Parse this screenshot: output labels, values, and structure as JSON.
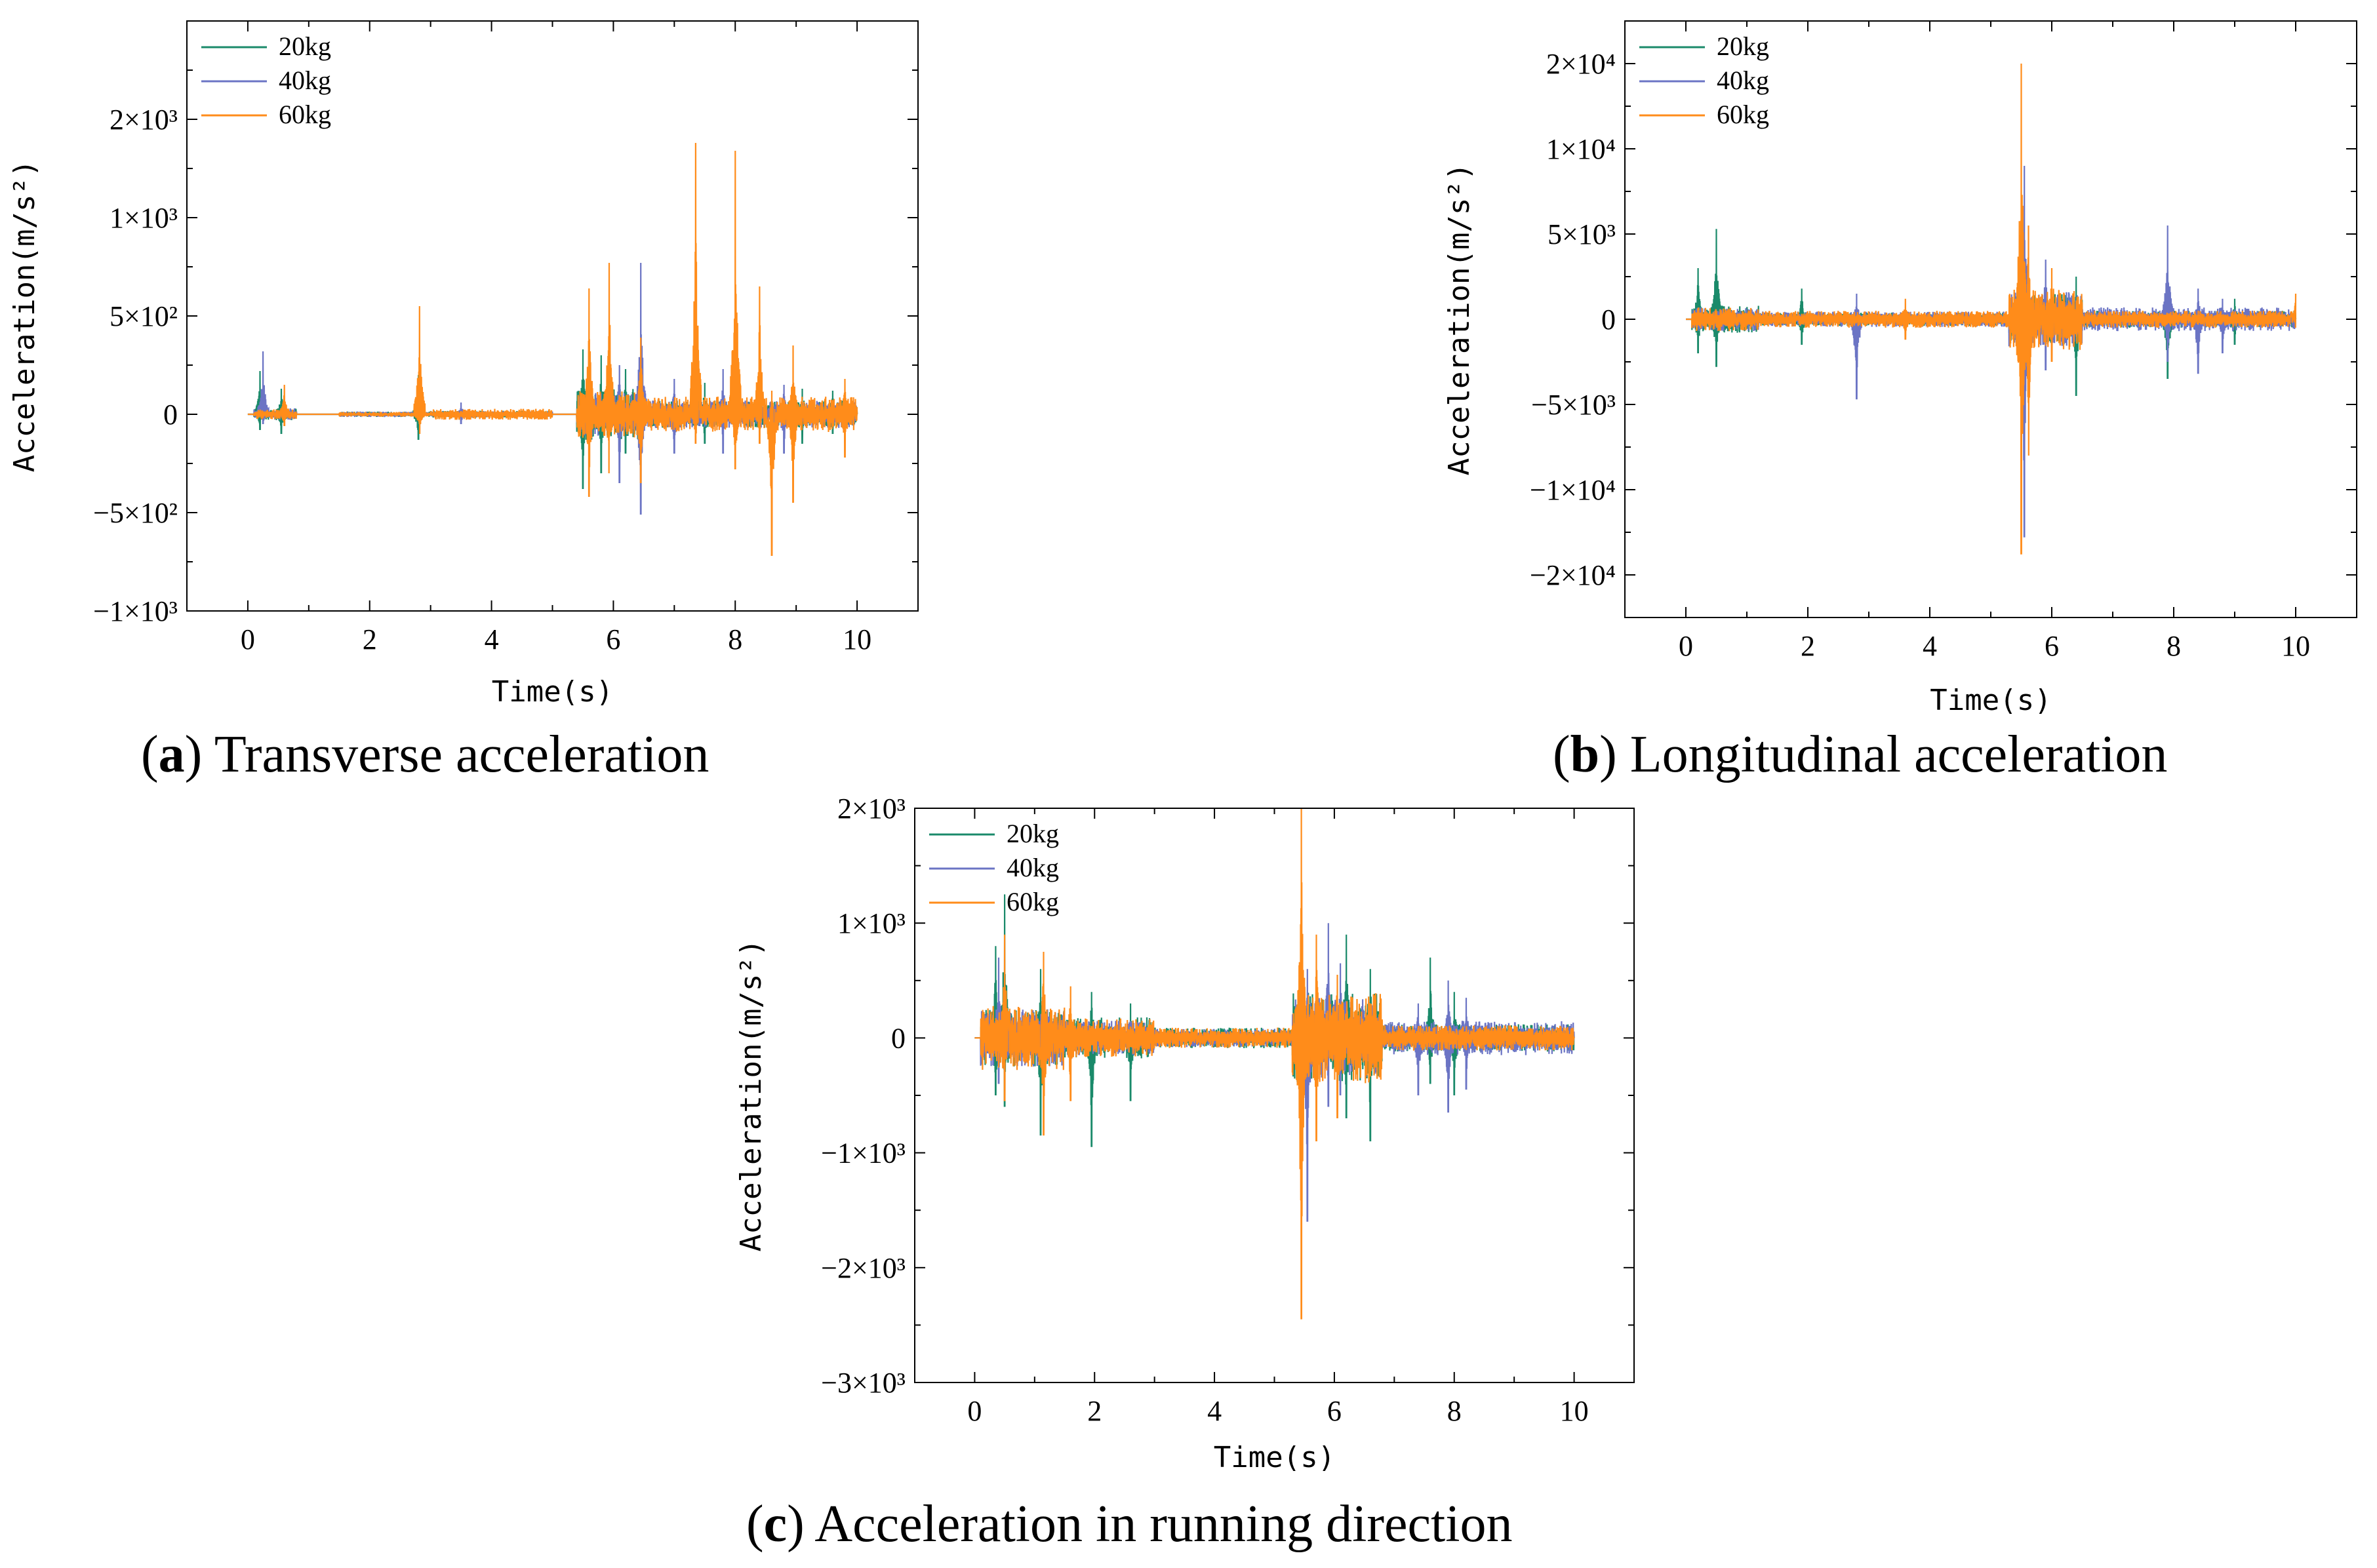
{
  "colors": {
    "20kg": "#1a8a6a",
    "40kg": "#6b74c4",
    "60kg": "#ff8c1a"
  },
  "chart_data": [
    {
      "id": "a",
      "type": "line",
      "caption_letter": "a",
      "caption_text": " Transverse acceleration",
      "xlabel": "Time(s)",
      "ylabel": "Acceleration(m/s²)",
      "xlim": [
        -1,
        11
      ],
      "ylim": [
        -1000,
        2000
      ],
      "xticks": [
        0,
        2,
        4,
        6,
        8,
        10
      ],
      "xtick_labels": [
        "0",
        "2",
        "4",
        "6",
        "8",
        "10"
      ],
      "yticks": [
        -1000,
        -500,
        0,
        500,
        1000,
        1500
      ],
      "ytick_labels": [
        "−1×10³",
        "−5×10²",
        "0",
        "5×10²",
        "1×10³",
        "2×10³"
      ],
      "legend": [
        "20kg",
        "40kg",
        "60kg"
      ],
      "legend_position": "top-left",
      "series": [
        {
          "name": "20kg",
          "events": [
            [
              0.2,
              220,
              -80
            ],
            [
              0.55,
              130,
              -100
            ],
            [
              2.8,
              200,
              -130
            ],
            [
              5.5,
              330,
              -380
            ],
            [
              5.8,
              300,
              -300
            ],
            [
              6.2,
              230,
              -200
            ],
            [
              7.5,
              160,
              -150
            ],
            [
              9.1,
              130,
              -150
            ],
            [
              9.6,
              120,
              -100
            ]
          ],
          "bands": [
            [
              0.1,
              0.8,
              30
            ],
            [
              1.5,
              3.0,
              14
            ],
            [
              3.0,
              5.0,
              18
            ],
            [
              5.4,
              6.5,
              130
            ],
            [
              6.5,
              10,
              70
            ]
          ]
        },
        {
          "name": "40kg",
          "events": [
            [
              0.25,
              320,
              -50
            ],
            [
              3.5,
              60,
              -50
            ],
            [
              6.1,
              250,
              -350
            ],
            [
              6.45,
              770,
              -510
            ],
            [
              7.0,
              180,
              -200
            ],
            [
              7.8,
              230,
              -200
            ],
            [
              8.8,
              150,
              -200
            ]
          ],
          "bands": [
            [
              0.1,
              0.8,
              30
            ],
            [
              1.5,
              3.0,
              14
            ],
            [
              3.0,
              5.0,
              16
            ],
            [
              5.4,
              6.5,
              110
            ],
            [
              6.5,
              10,
              70
            ]
          ]
        },
        {
          "name": "60kg",
          "events": [
            [
              0.6,
              150,
              -60
            ],
            [
              2.82,
              550,
              -100
            ],
            [
              5.6,
              640,
              -420
            ],
            [
              5.93,
              770,
              -300
            ],
            [
              6.45,
              390,
              -350
            ],
            [
              7.35,
              1380,
              -150
            ],
            [
              8.0,
              1340,
              -280
            ],
            [
              8.4,
              650,
              -150
            ],
            [
              8.6,
              120,
              -720
            ],
            [
              8.95,
              350,
              -450
            ],
            [
              9.8,
              180,
              -220
            ]
          ],
          "bands": [
            [
              0.1,
              0.8,
              25
            ],
            [
              1.5,
              3.0,
              12
            ],
            [
              3.0,
              5.0,
              28
            ],
            [
              5.4,
              6.5,
              120
            ],
            [
              6.5,
              10,
              90
            ]
          ]
        }
      ]
    },
    {
      "id": "b",
      "type": "line",
      "caption_letter": "b",
      "caption_text": " Longitudinal acceleration",
      "xlabel": "Time(s)",
      "ylabel": "Acceleration(m/s²)",
      "xlim": [
        -1,
        11
      ],
      "ylim": [
        -17500,
        17500
      ],
      "xticks": [
        0,
        2,
        4,
        6,
        8,
        10
      ],
      "xtick_labels": [
        "0",
        "2",
        "4",
        "6",
        "8",
        "10"
      ],
      "yticks": [
        -15000,
        -10000,
        -5000,
        0,
        5000,
        10000,
        15000
      ],
      "ytick_labels": [
        "−2×10⁴",
        "−1×10⁴",
        "−5×10³",
        "0",
        "5×10³",
        "1×10⁴",
        "2×10⁴"
      ],
      "legend": [
        "20kg",
        "40kg",
        "60kg"
      ],
      "legend_position": "top-left",
      "series": [
        {
          "name": "20kg",
          "events": [
            [
              0.5,
              5300,
              -2800
            ],
            [
              0.2,
              3000,
              -2000
            ],
            [
              1.9,
              1800,
              -1500
            ],
            [
              5.5,
              4000,
              -5000
            ],
            [
              6.4,
              2500,
              -4500
            ],
            [
              7.9,
              2800,
              -3500
            ],
            [
              9.0,
              1200,
              -1500
            ]
          ],
          "bands": [
            [
              0.1,
              1.2,
              800
            ],
            [
              1.2,
              5.3,
              400
            ],
            [
              5.3,
              6.5,
              1500
            ],
            [
              6.5,
              10,
              500
            ]
          ]
        },
        {
          "name": "40kg",
          "events": [
            [
              2.8,
              1500,
              -4700
            ],
            [
              5.55,
              9000,
              -12800
            ],
            [
              5.9,
              3500,
              -3000
            ],
            [
              7.9,
              5500,
              -2500
            ],
            [
              8.4,
              1800,
              -3200
            ],
            [
              8.8,
              1200,
              -2000
            ]
          ],
          "bands": [
            [
              0.1,
              1.2,
              700
            ],
            [
              1.2,
              5.3,
              450
            ],
            [
              5.3,
              6.5,
              1600
            ],
            [
              6.5,
              10,
              700
            ]
          ]
        },
        {
          "name": "60kg",
          "events": [
            [
              5.5,
              15000,
              -13800
            ],
            [
              5.62,
              5500,
              -8000
            ],
            [
              6.0,
              3000,
              -2500
            ],
            [
              3.6,
              1200,
              -1200
            ],
            [
              10.0,
              1500,
              -500
            ]
          ],
          "bands": [
            [
              0.1,
              1.2,
              700
            ],
            [
              1.2,
              5.3,
              500
            ],
            [
              5.3,
              6.5,
              1800
            ],
            [
              6.5,
              10,
              500
            ]
          ]
        }
      ]
    },
    {
      "id": "c",
      "type": "line",
      "caption_letter": "c",
      "caption_text": " Acceleration in running direction",
      "xlabel": "Time(s)",
      "ylabel": "Acceleration(m/s²)",
      "xlim": [
        -1,
        11
      ],
      "ylim": [
        -3000,
        2000
      ],
      "xticks": [
        0,
        2,
        4,
        6,
        8,
        10
      ],
      "xtick_labels": [
        "0",
        "2",
        "4",
        "6",
        "8",
        "10"
      ],
      "yticks": [
        -3000,
        -2000,
        -1000,
        0,
        1000,
        2000
      ],
      "ytick_labels": [
        "−3×10³",
        "−2×10³",
        "−1×10³",
        "0",
        "1×10³",
        "2×10³"
      ],
      "legend": [
        "20kg",
        "40kg",
        "60kg"
      ],
      "legend_position": "top-left",
      "series": [
        {
          "name": "20kg",
          "events": [
            [
              0.5,
              1250,
              -600
            ],
            [
              0.35,
              800,
              -500
            ],
            [
              1.1,
              600,
              -850
            ],
            [
              1.95,
              400,
              -950
            ],
            [
              2.6,
              300,
              -550
            ],
            [
              6.2,
              900,
              -700
            ],
            [
              6.6,
              600,
              -900
            ],
            [
              7.6,
              700,
              -400
            ],
            [
              8.0,
              400,
              -500
            ]
          ],
          "bands": [
            [
              0.1,
              1.5,
              250
            ],
            [
              1.5,
              3.0,
              180
            ],
            [
              3.0,
              5.3,
              90
            ],
            [
              5.3,
              6.8,
              400
            ],
            [
              6.8,
              10,
              120
            ]
          ]
        },
        {
          "name": "40kg",
          "events": [
            [
              0.4,
              700,
              -400
            ],
            [
              5.55,
              600,
              -1600
            ],
            [
              5.9,
              1000,
              -600
            ],
            [
              6.1,
              650,
              -500
            ],
            [
              7.9,
              500,
              -650
            ],
            [
              8.2,
              350,
              -450
            ],
            [
              7.4,
              300,
              -500
            ]
          ],
          "bands": [
            [
              0.1,
              1.5,
              250
            ],
            [
              1.5,
              3.0,
              150
            ],
            [
              3.0,
              5.3,
              80
            ],
            [
              5.3,
              6.8,
              350
            ],
            [
              6.8,
              10,
              150
            ]
          ]
        },
        {
          "name": "60kg",
          "events": [
            [
              5.45,
              2050,
              -2450
            ],
            [
              0.5,
              900,
              -550
            ],
            [
              1.15,
              750,
              -850
            ],
            [
              1.6,
              450,
              -550
            ],
            [
              5.7,
              900,
              -900
            ],
            [
              6.05,
              550,
              -700
            ]
          ],
          "bands": [
            [
              0.1,
              1.5,
              280
            ],
            [
              1.5,
              3.0,
              170
            ],
            [
              3.0,
              5.3,
              90
            ],
            [
              5.3,
              6.8,
              400
            ],
            [
              6.8,
              10,
              110
            ]
          ]
        }
      ]
    }
  ]
}
